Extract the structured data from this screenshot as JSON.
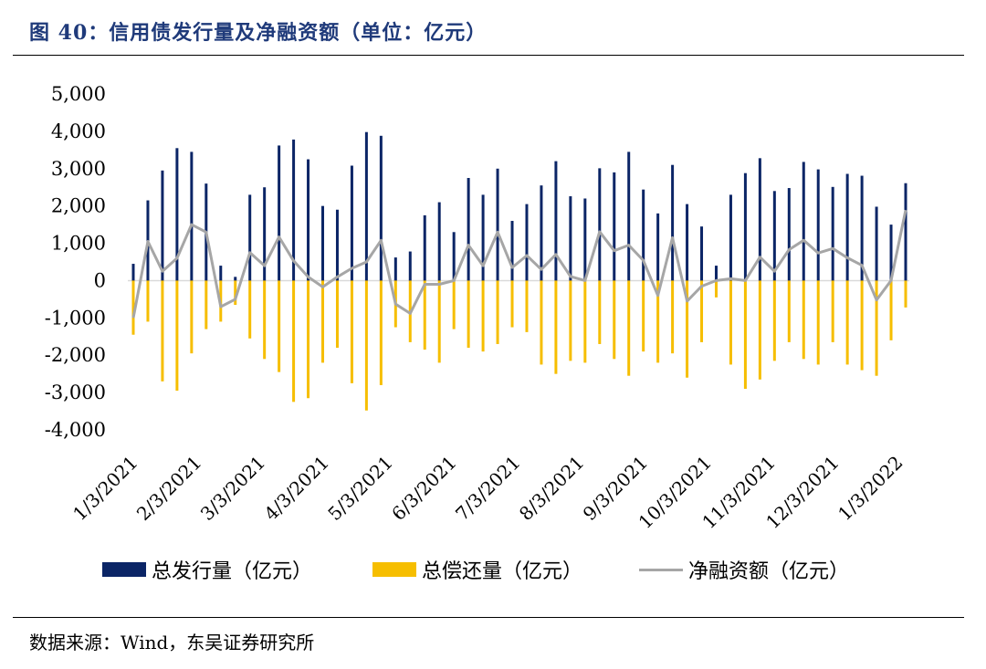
{
  "title": "图 40：信用债发行量及净融资额（单位：亿元）",
  "source": "数据来源：Wind，东吴证券研究所",
  "colors": {
    "issue": "#0b2566",
    "repay": "#f6be00",
    "net": "#a6a6a6"
  },
  "chart_data": {
    "type": "bar",
    "ylim": [
      -4000,
      5000
    ],
    "yticks": [
      5000,
      4000,
      3000,
      2000,
      1000,
      0,
      -1000,
      -2000,
      -3000,
      -4000
    ],
    "ytick_labels": [
      "5,000",
      "4,000",
      "3,000",
      "2,000",
      "1,000",
      "0",
      "-1,000",
      "-2,000",
      "-3,000",
      "-4,000"
    ],
    "xtick_labels": [
      "1/3/2021",
      "2/3/2021",
      "3/3/2021",
      "4/3/2021",
      "5/3/2021",
      "6/3/2021",
      "7/3/2021",
      "8/3/2021",
      "9/3/2021",
      "10/3/2021",
      "11/3/2021",
      "12/3/2021",
      "1/3/2022"
    ],
    "grid": false,
    "legend_position": "bottom",
    "series": [
      {
        "name": "总发行量（亿元）",
        "type": "bar",
        "values": [
          450,
          2150,
          2950,
          3550,
          3450,
          2600,
          400,
          100,
          2300,
          2500,
          3620,
          3780,
          3250,
          2000,
          1900,
          3080,
          3980,
          3880,
          620,
          780,
          1750,
          2100,
          1300,
          2750,
          2300,
          3000,
          1600,
          2050,
          2550,
          3200,
          2260,
          2200,
          3010,
          2900,
          3450,
          2440,
          1800,
          3100,
          2050,
          1450,
          400,
          2300,
          2880,
          3280,
          2400,
          2480,
          3180,
          2980,
          2510,
          2860,
          2810,
          1980,
          1500,
          2610
        ]
      },
      {
        "name": "总偿还量（亿元）",
        "type": "bar",
        "values": [
          -1450,
          -1100,
          -2700,
          -2950,
          -1950,
          -1300,
          -1100,
          -650,
          -1550,
          -2100,
          -2450,
          -3250,
          -3150,
          -2200,
          -1800,
          -2750,
          -3480,
          -2800,
          -1250,
          -1650,
          -1850,
          -2200,
          -1300,
          -1800,
          -1900,
          -1700,
          -1250,
          -1380,
          -2250,
          -2500,
          -2150,
          -2200,
          -1700,
          -2100,
          -2550,
          -1900,
          -2200,
          -1950,
          -2600,
          -1650,
          -450,
          -2250,
          -2900,
          -2650,
          -2150,
          -1650,
          -2100,
          -2250,
          -1650,
          -2250,
          -2400,
          -2550,
          -1600,
          -720
        ]
      },
      {
        "name": "净融资额（亿元）",
        "type": "line",
        "values": [
          -1000,
          1050,
          250,
          600,
          1500,
          1300,
          -700,
          -500,
          750,
          400,
          1170,
          530,
          100,
          -170,
          100,
          330,
          500,
          1080,
          -630,
          -880,
          -100,
          -100,
          0,
          950,
          400,
          1300,
          350,
          670,
          300,
          700,
          110,
          0,
          1310,
          800,
          950,
          540,
          -400,
          1150,
          -550,
          -150,
          0,
          50,
          0,
          630,
          250,
          830,
          1080,
          740,
          860,
          610,
          410,
          -520,
          0,
          1890
        ]
      }
    ]
  },
  "legend": [
    {
      "label": "总发行量（亿元）"
    },
    {
      "label": "总偿还量（亿元）"
    },
    {
      "label": "净融资额（亿元）"
    }
  ]
}
